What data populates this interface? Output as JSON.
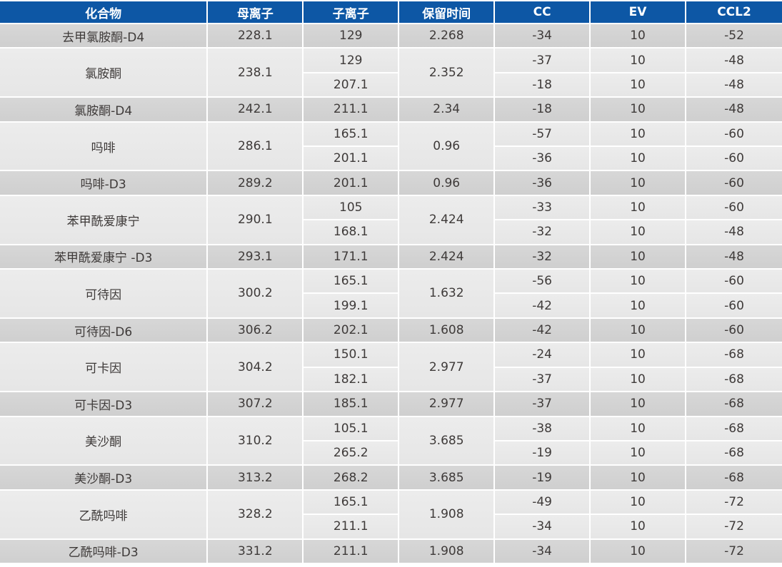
{
  "table": {
    "columns": [
      "化合物",
      "母离子",
      "子离子",
      "保留时间",
      "CC",
      "EV",
      "CCL2"
    ],
    "groups": [
      {
        "compound": "去甲氯胺酮-D4",
        "parent_ion": "228.1",
        "retention_time": "2.268",
        "transitions": [
          {
            "daughter_ion": "129",
            "cc": "-34",
            "ev": "10",
            "ccl2": "-52"
          }
        ]
      },
      {
        "compound": "氯胺酮",
        "parent_ion": "238.1",
        "retention_time": "2.352",
        "transitions": [
          {
            "daughter_ion": "129",
            "cc": "-37",
            "ev": "10",
            "ccl2": "-48"
          },
          {
            "daughter_ion": "207.1",
            "cc": "-18",
            "ev": "10",
            "ccl2": "-48"
          }
        ]
      },
      {
        "compound": "氯胺酮-D4",
        "parent_ion": "242.1",
        "retention_time": "2.34",
        "transitions": [
          {
            "daughter_ion": "211.1",
            "cc": "-18",
            "ev": "10",
            "ccl2": "-48"
          }
        ]
      },
      {
        "compound": "吗啡",
        "parent_ion": "286.1",
        "retention_time": "0.96",
        "transitions": [
          {
            "daughter_ion": "165.1",
            "cc": "-57",
            "ev": "10",
            "ccl2": "-60"
          },
          {
            "daughter_ion": "201.1",
            "cc": "-36",
            "ev": "10",
            "ccl2": "-60"
          }
        ]
      },
      {
        "compound": "吗啡-D3",
        "parent_ion": "289.2",
        "retention_time": "0.96",
        "transitions": [
          {
            "daughter_ion": "201.1",
            "cc": "-36",
            "ev": "10",
            "ccl2": "-60"
          }
        ]
      },
      {
        "compound": "苯甲酰爱康宁",
        "parent_ion": "290.1",
        "retention_time": "2.424",
        "transitions": [
          {
            "daughter_ion": "105",
            "cc": "-33",
            "ev": "10",
            "ccl2": "-60"
          },
          {
            "daughter_ion": "168.1",
            "cc": "-32",
            "ev": "10",
            "ccl2": "-48"
          }
        ]
      },
      {
        "compound": "苯甲酰爱康宁 -D3",
        "parent_ion": "293.1",
        "retention_time": "2.424",
        "transitions": [
          {
            "daughter_ion": "171.1",
            "cc": "-32",
            "ev": "10",
            "ccl2": "-48"
          }
        ]
      },
      {
        "compound": "可待因",
        "parent_ion": "300.2",
        "retention_time": "1.632",
        "transitions": [
          {
            "daughter_ion": "165.1",
            "cc": "-56",
            "ev": "10",
            "ccl2": "-60"
          },
          {
            "daughter_ion": "199.1",
            "cc": "-42",
            "ev": "10",
            "ccl2": "-60"
          }
        ]
      },
      {
        "compound": "可待因-D6",
        "parent_ion": "306.2",
        "retention_time": "1.608",
        "transitions": [
          {
            "daughter_ion": "202.1",
            "cc": "-42",
            "ev": "10",
            "ccl2": "-60"
          }
        ]
      },
      {
        "compound": "可卡因",
        "parent_ion": "304.2",
        "retention_time": "2.977",
        "transitions": [
          {
            "daughter_ion": "150.1",
            "cc": "-24",
            "ev": "10",
            "ccl2": "-68"
          },
          {
            "daughter_ion": "182.1",
            "cc": "-37",
            "ev": "10",
            "ccl2": "-68"
          }
        ]
      },
      {
        "compound": "可卡因-D3",
        "parent_ion": "307.2",
        "retention_time": "2.977",
        "transitions": [
          {
            "daughter_ion": "185.1",
            "cc": "-37",
            "ev": "10",
            "ccl2": "-68"
          }
        ]
      },
      {
        "compound": "美沙酮",
        "parent_ion": "310.2",
        "retention_time": "3.685",
        "transitions": [
          {
            "daughter_ion": "105.1",
            "cc": "-38",
            "ev": "10",
            "ccl2": "-68"
          },
          {
            "daughter_ion": "265.2",
            "cc": "-19",
            "ev": "10",
            "ccl2": "-68"
          }
        ]
      },
      {
        "compound": "美沙酮-D3",
        "parent_ion": "313.2",
        "retention_time": "3.685",
        "transitions": [
          {
            "daughter_ion": "268.2",
            "cc": "-19",
            "ev": "10",
            "ccl2": "-68"
          }
        ]
      },
      {
        "compound": "乙酰吗啡",
        "parent_ion": "328.2",
        "retention_time": "1.908",
        "transitions": [
          {
            "daughter_ion": "165.1",
            "cc": "-49",
            "ev": "10",
            "ccl2": "-72"
          },
          {
            "daughter_ion": "211.1",
            "cc": "-34",
            "ev": "10",
            "ccl2": "-72"
          }
        ]
      },
      {
        "compound": "乙酰吗啡-D3",
        "parent_ion": "331.2",
        "retention_time": "1.908",
        "transitions": [
          {
            "daughter_ion": "211.1",
            "cc": "-34",
            "ev": "10",
            "ccl2": "-72"
          }
        ]
      }
    ]
  },
  "colors": {
    "header_bg": "#0d57a5",
    "header_text": "#ffffff",
    "row_dark": "#d2d2d2",
    "row_light": "#e9e9e9",
    "cell_text": "#3e3a39",
    "grid": "#ffffff"
  }
}
